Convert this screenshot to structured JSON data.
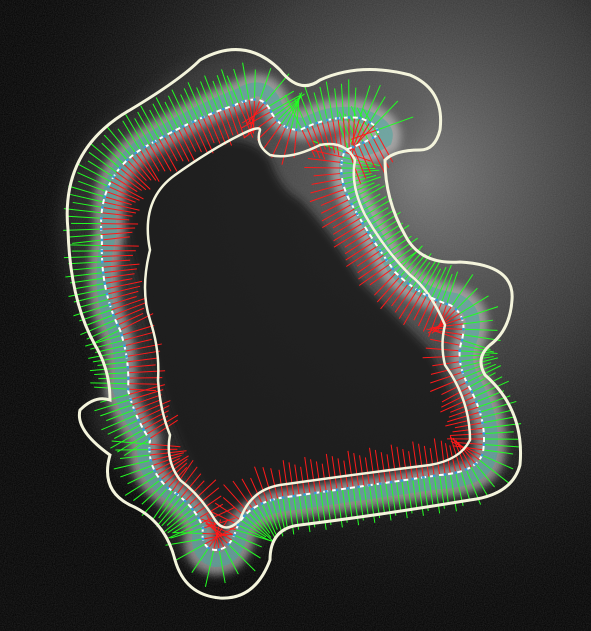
{
  "image": {
    "subject": "fluorescence-microscopy-cell-membrane-contour-overlay",
    "colors": {
      "background": "#000000",
      "haze": "#9a9a9a",
      "membrane_glow": "#e8e8e8",
      "membrane_teal": "#3fa7a0",
      "contour": "#f4f4dc",
      "midline": "#ffffff",
      "inner_normals": "#ff1a1a",
      "outer_normals": "#22ff22",
      "points": "#3a9bd8"
    },
    "legend": []
  }
}
